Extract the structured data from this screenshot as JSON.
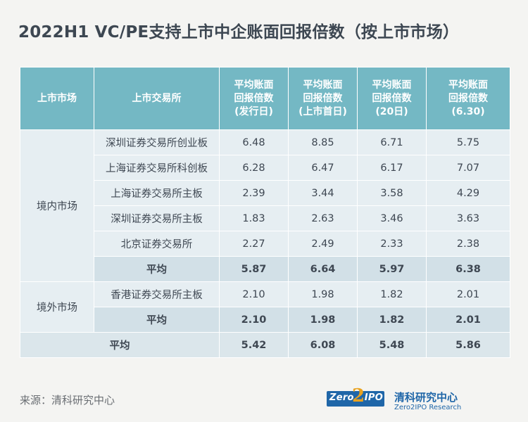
{
  "title": "2022H1 VC/PE支持上市中企账面回报倍数（按上市市场）",
  "table": {
    "headers": [
      [
        "上市市场"
      ],
      [
        "上市交易所"
      ],
      [
        "平均账面",
        "回报倍数",
        "(发行日)"
      ],
      [
        "平均账面",
        "回报倍数",
        "(上市首日)"
      ],
      [
        "平均账面",
        "回报倍数",
        "(20日)"
      ],
      [
        "平均账面",
        "回报倍数",
        "(6.30)"
      ]
    ],
    "domestic": {
      "market": "境内市场",
      "rows": [
        {
          "exchange": "深圳证券交易所创业板",
          "values": [
            "6.48",
            "8.85",
            "6.71",
            "5.75"
          ]
        },
        {
          "exchange": "上海证券交易所科创板",
          "values": [
            "6.28",
            "6.47",
            "6.17",
            "7.07"
          ]
        },
        {
          "exchange": "上海证券交易所主板",
          "values": [
            "2.39",
            "3.44",
            "3.58",
            "4.29"
          ]
        },
        {
          "exchange": "深圳证券交易所主板",
          "values": [
            "1.83",
            "2.63",
            "3.46",
            "3.63"
          ]
        },
        {
          "exchange": "北京证券交易所",
          "values": [
            "2.27",
            "2.49",
            "2.33",
            "2.38"
          ]
        }
      ],
      "avg": {
        "label": "平均",
        "values": [
          "5.87",
          "6.64",
          "5.97",
          "6.38"
        ]
      }
    },
    "overseas": {
      "market": "境外市场",
      "rows": [
        {
          "exchange": "香港证券交易所主板",
          "values": [
            "2.10",
            "1.98",
            "1.82",
            "2.01"
          ]
        }
      ],
      "avg": {
        "label": "平均",
        "values": [
          "2.10",
          "1.98",
          "1.82",
          "2.01"
        ]
      }
    },
    "total": {
      "label": "平均",
      "values": [
        "5.42",
        "6.08",
        "5.48",
        "5.86"
      ]
    }
  },
  "source": "来源：清科研究中心",
  "logo": {
    "mark_left": "Zero",
    "mark_two": "2",
    "mark_right": "IPO",
    "org_cn": "清科研究中心",
    "org_en": "Zero2IPO Research"
  },
  "colors": {
    "header_bg": "#74b8c4",
    "row_light": "#e6eef2",
    "row_avg": "#d2e0e7",
    "brand_blue": "#1f66a8",
    "brand_orange": "#e9a21f"
  }
}
